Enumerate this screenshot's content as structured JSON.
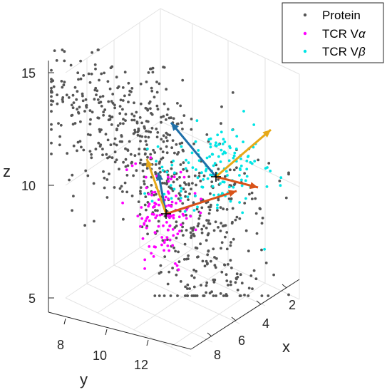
{
  "chart_data": {
    "type": "scatter",
    "subtype": "3d-scatter-with-vectors",
    "title": "",
    "xlabel": "x",
    "ylabel": "y",
    "zlabel": "z",
    "xlim": [
      0,
      9
    ],
    "ylim": [
      6,
      14
    ],
    "zlim": [
      4,
      16
    ],
    "xticks": [
      "2",
      "4",
      "6",
      "8"
    ],
    "yticks": [
      "8",
      "10",
      "12"
    ],
    "zticks": [
      "5",
      "10",
      "15"
    ],
    "grid": true,
    "legend_position": "top-right",
    "series": [
      {
        "name": "Protein",
        "color": "#555555",
        "marker": "dot",
        "n_points": 700,
        "center": [
          5,
          10.5,
          10
        ],
        "spread": [
          2.5,
          2.5,
          3.5
        ]
      },
      {
        "name": "TCR Vα",
        "color": "#ff00ff",
        "marker": "dot",
        "n_points": 110,
        "center": [
          6.6,
          10.8,
          9.2
        ],
        "spread": [
          1.0,
          1.0,
          1.5
        ]
      },
      {
        "name": "TCR Vβ",
        "color": "#00e5e5",
        "marker": "dot",
        "n_points": 140,
        "center": [
          3.5,
          10.5,
          11.3
        ],
        "spread": [
          1.2,
          1.2,
          1.2
        ]
      }
    ],
    "vectors": [
      {
        "origin_label": "Vα center",
        "color": "#1f6fa8"
      },
      {
        "origin_label": "Vα center",
        "color": "#d95319"
      },
      {
        "origin_label": "Vα center",
        "color": "#e6a817"
      },
      {
        "origin_label": "Vβ center",
        "color": "#1f6fa8"
      },
      {
        "origin_label": "Vβ center",
        "color": "#d95319"
      },
      {
        "origin_label": "Vβ center",
        "color": "#e6a817"
      }
    ]
  },
  "legend": {
    "items": [
      {
        "label": "Protein",
        "color": "#555555"
      },
      {
        "label": "TCR V",
        "greek": "α",
        "color": "#ff00ff"
      },
      {
        "label": "TCR V",
        "greek": "β",
        "color": "#00e5e5"
      }
    ]
  }
}
